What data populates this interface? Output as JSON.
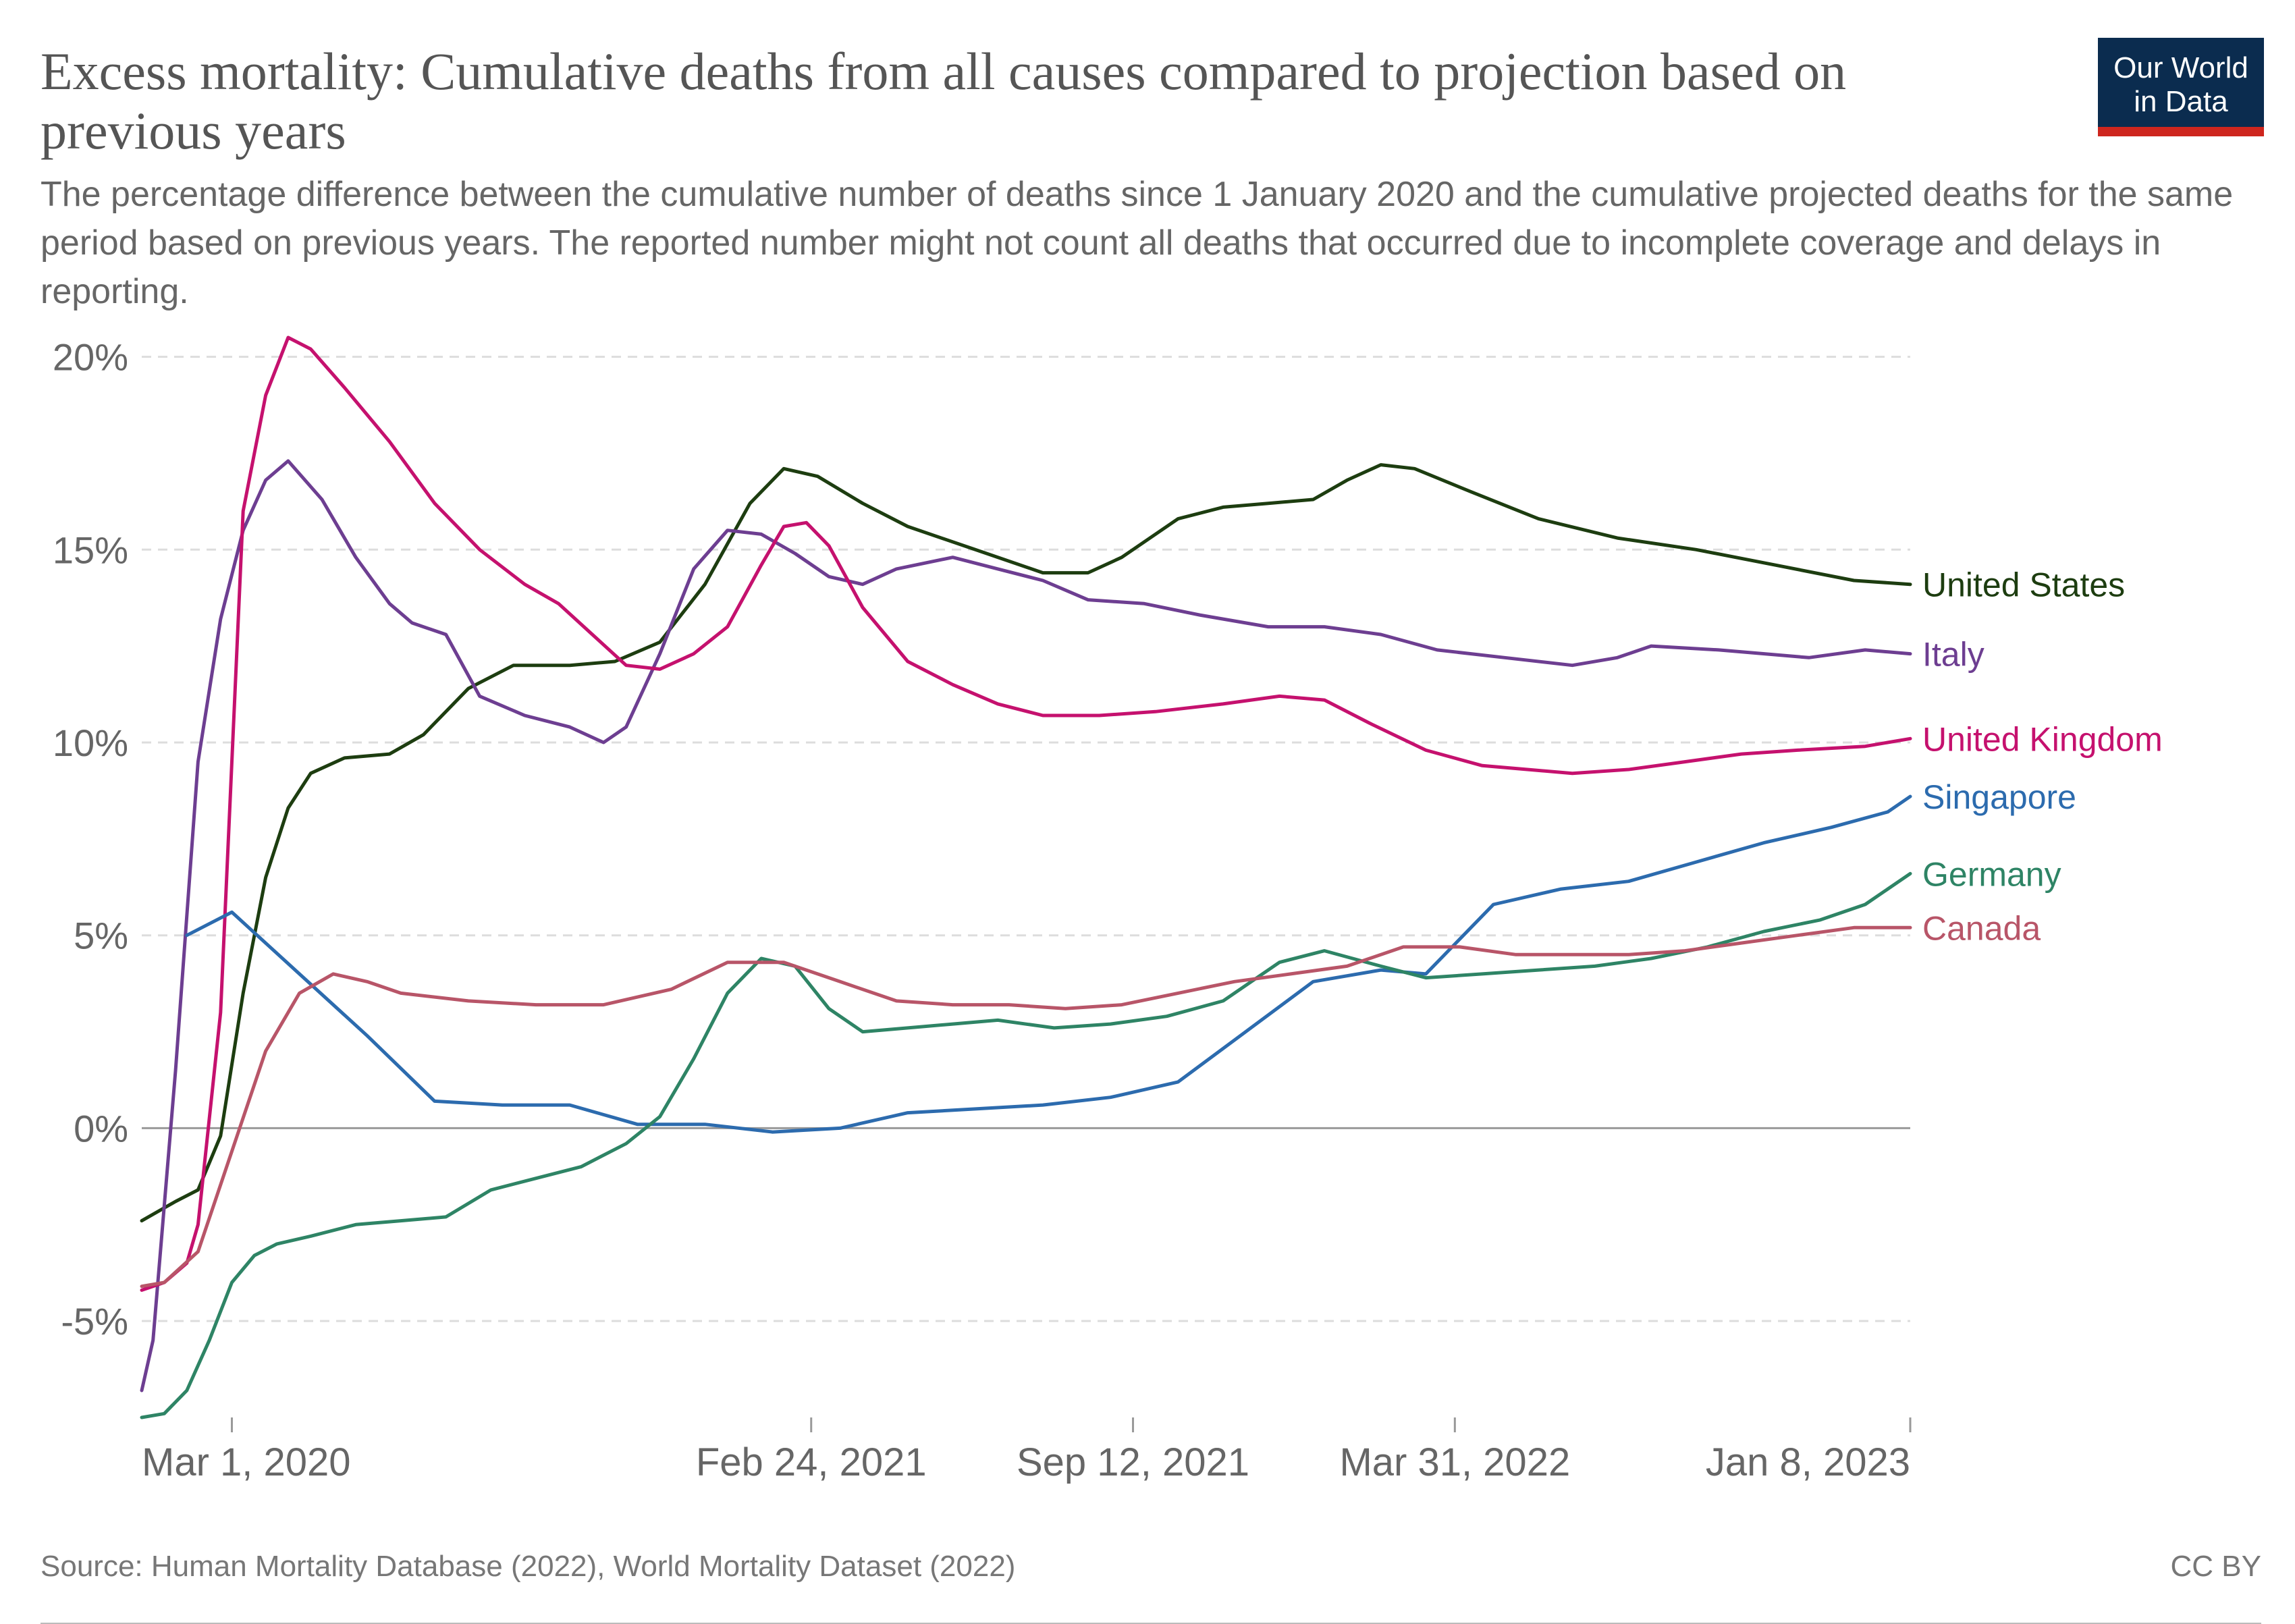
{
  "header": {
    "title": "Excess mortality: Cumulative deaths from all causes compared to projection based on previous years",
    "subtitle": "The percentage difference between the cumulative number of deaths since 1 January 2020 and the cumulative projected deaths for the same period based on previous years. The reported number might not count all deaths that occurred due to incomplete coverage and delays in reporting.",
    "logo_line1": "Our World",
    "logo_line2": "in Data"
  },
  "footer": {
    "source": "Source: Human Mortality Database (2022), World Mortality Dataset (2022)",
    "license": "CC BY"
  },
  "colors": {
    "United States": "#1d3d10",
    "Italy": "#6d3e91",
    "United Kingdom": "#c5116e",
    "Singapore": "#2c6bae",
    "Germany": "#2e8465",
    "Canada": "#b85568",
    "grid": "#dddddd",
    "axis": "#999999",
    "text": "#666666"
  },
  "chart_data": {
    "type": "line",
    "title": "Excess mortality: Cumulative deaths from all causes compared to projection based on previous years",
    "xlabel": "",
    "ylabel": "",
    "x_axis": "date",
    "xlim": [
      "2020-01-05",
      "2023-01-08"
    ],
    "ylim": [
      -7.5,
      20.5
    ],
    "x_ticks": [
      {
        "date": "2020-03-01",
        "label": "Mar 1, 2020"
      },
      {
        "date": "2021-02-24",
        "label": "Feb 24, 2021"
      },
      {
        "date": "2021-09-12",
        "label": "Sep 12, 2021"
      },
      {
        "date": "2022-03-31",
        "label": "Mar 31, 2022"
      },
      {
        "date": "2023-01-08",
        "label": "Jan 8, 2023"
      }
    ],
    "y_ticks": [
      {
        "value": 20,
        "label": "20%"
      },
      {
        "value": 15,
        "label": "15%"
      },
      {
        "value": 10,
        "label": "10%"
      },
      {
        "value": 5,
        "label": "5%"
      },
      {
        "value": 0,
        "label": "0%"
      },
      {
        "value": -5,
        "label": "-5%"
      }
    ],
    "grid": "horizontal dashed",
    "legend": "labels at right end of each line",
    "series": [
      {
        "name": "United States",
        "points": [
          [
            "2020-01-05",
            -2.4
          ],
          [
            "2020-01-26",
            -1.9
          ],
          [
            "2020-02-09",
            -1.6
          ],
          [
            "2020-02-23",
            -0.2
          ],
          [
            "2020-03-08",
            3.5
          ],
          [
            "2020-03-22",
            6.5
          ],
          [
            "2020-04-05",
            8.3
          ],
          [
            "2020-04-19",
            9.2
          ],
          [
            "2020-05-10",
            9.6
          ],
          [
            "2020-06-07",
            9.7
          ],
          [
            "2020-06-28",
            10.2
          ],
          [
            "2020-07-26",
            11.4
          ],
          [
            "2020-08-23",
            12.0
          ],
          [
            "2020-09-27",
            12.0
          ],
          [
            "2020-10-25",
            12.1
          ],
          [
            "2020-11-22",
            12.6
          ],
          [
            "2020-12-20",
            14.1
          ],
          [
            "2021-01-17",
            16.2
          ],
          [
            "2021-02-07",
            17.1
          ],
          [
            "2021-02-28",
            16.9
          ],
          [
            "2021-03-28",
            16.2
          ],
          [
            "2021-04-25",
            15.6
          ],
          [
            "2021-06-06",
            15.0
          ],
          [
            "2021-07-18",
            14.4
          ],
          [
            "2021-08-15",
            14.4
          ],
          [
            "2021-09-05",
            14.8
          ],
          [
            "2021-10-10",
            15.8
          ],
          [
            "2021-11-07",
            16.1
          ],
          [
            "2021-12-05",
            16.2
          ],
          [
            "2022-01-02",
            16.3
          ],
          [
            "2022-01-23",
            16.8
          ],
          [
            "2022-02-13",
            17.2
          ],
          [
            "2022-03-06",
            17.1
          ],
          [
            "2022-04-10",
            16.5
          ],
          [
            "2022-05-22",
            15.8
          ],
          [
            "2022-07-10",
            15.3
          ],
          [
            "2022-08-28",
            15.0
          ],
          [
            "2022-10-16",
            14.6
          ],
          [
            "2022-12-04",
            14.2
          ],
          [
            "2023-01-08",
            14.1
          ]
        ]
      },
      {
        "name": "Italy",
        "points": [
          [
            "2020-01-05",
            -6.8
          ],
          [
            "2020-01-12",
            -5.5
          ],
          [
            "2020-01-26",
            1.5
          ],
          [
            "2020-02-09",
            9.5
          ],
          [
            "2020-02-23",
            13.2
          ],
          [
            "2020-03-08",
            15.5
          ],
          [
            "2020-03-22",
            16.8
          ],
          [
            "2020-04-05",
            17.3
          ],
          [
            "2020-04-26",
            16.3
          ],
          [
            "2020-05-17",
            14.8
          ],
          [
            "2020-06-07",
            13.6
          ],
          [
            "2020-06-21",
            13.1
          ],
          [
            "2020-07-12",
            12.8
          ],
          [
            "2020-08-02",
            11.2
          ],
          [
            "2020-08-30",
            10.7
          ],
          [
            "2020-09-27",
            10.4
          ],
          [
            "2020-10-18",
            10.0
          ],
          [
            "2020-11-01",
            10.4
          ],
          [
            "2020-11-22",
            12.3
          ],
          [
            "2020-12-13",
            14.5
          ],
          [
            "2021-01-03",
            15.5
          ],
          [
            "2021-01-24",
            15.4
          ],
          [
            "2021-02-14",
            14.9
          ],
          [
            "2021-03-07",
            14.3
          ],
          [
            "2021-03-28",
            14.1
          ],
          [
            "2021-04-18",
            14.5
          ],
          [
            "2021-05-23",
            14.8
          ],
          [
            "2021-06-20",
            14.5
          ],
          [
            "2021-07-18",
            14.2
          ],
          [
            "2021-08-15",
            13.7
          ],
          [
            "2021-09-19",
            13.6
          ],
          [
            "2021-10-24",
            13.3
          ],
          [
            "2021-12-05",
            13.0
          ],
          [
            "2022-01-09",
            13.0
          ],
          [
            "2022-02-13",
            12.8
          ],
          [
            "2022-03-20",
            12.4
          ],
          [
            "2022-05-01",
            12.2
          ],
          [
            "2022-06-12",
            12.0
          ],
          [
            "2022-07-10",
            12.2
          ],
          [
            "2022-07-31",
            12.5
          ],
          [
            "2022-09-11",
            12.4
          ],
          [
            "2022-11-06",
            12.2
          ],
          [
            "2022-12-11",
            12.4
          ],
          [
            "2023-01-08",
            12.3
          ]
        ]
      },
      {
        "name": "United Kingdom",
        "points": [
          [
            "2020-01-05",
            -4.2
          ],
          [
            "2020-01-19",
            -4.0
          ],
          [
            "2020-02-02",
            -3.5
          ],
          [
            "2020-02-09",
            -2.5
          ],
          [
            "2020-02-23",
            3.0
          ],
          [
            "2020-03-08",
            16.0
          ],
          [
            "2020-03-22",
            19.0
          ],
          [
            "2020-04-05",
            20.5
          ],
          [
            "2020-04-19",
            20.2
          ],
          [
            "2020-05-10",
            19.2
          ],
          [
            "2020-06-07",
            17.8
          ],
          [
            "2020-07-05",
            16.2
          ],
          [
            "2020-08-02",
            15.0
          ],
          [
            "2020-08-30",
            14.1
          ],
          [
            "2020-09-20",
            13.6
          ],
          [
            "2020-10-11",
            12.8
          ],
          [
            "2020-11-01",
            12.0
          ],
          [
            "2020-11-22",
            11.9
          ],
          [
            "2020-12-13",
            12.3
          ],
          [
            "2021-01-03",
            13.0
          ],
          [
            "2021-01-24",
            14.6
          ],
          [
            "2021-02-07",
            15.6
          ],
          [
            "2021-02-21",
            15.7
          ],
          [
            "2021-03-07",
            15.1
          ],
          [
            "2021-03-28",
            13.5
          ],
          [
            "2021-04-25",
            12.1
          ],
          [
            "2021-05-23",
            11.5
          ],
          [
            "2021-06-20",
            11.0
          ],
          [
            "2021-07-18",
            10.7
          ],
          [
            "2021-08-22",
            10.7
          ],
          [
            "2021-09-26",
            10.8
          ],
          [
            "2021-11-07",
            11.0
          ],
          [
            "2021-12-12",
            11.2
          ],
          [
            "2022-01-09",
            11.1
          ],
          [
            "2022-02-06",
            10.5
          ],
          [
            "2022-03-13",
            9.8
          ],
          [
            "2022-04-17",
            9.4
          ],
          [
            "2022-05-15",
            9.3
          ],
          [
            "2022-06-12",
            9.2
          ],
          [
            "2022-07-17",
            9.3
          ],
          [
            "2022-08-21",
            9.5
          ],
          [
            "2022-09-25",
            9.7
          ],
          [
            "2022-10-30",
            9.8
          ],
          [
            "2022-12-11",
            9.9
          ],
          [
            "2023-01-08",
            10.1
          ]
        ]
      },
      {
        "name": "Singapore",
        "points": [
          [
            "2020-02-02",
            5.0
          ],
          [
            "2020-03-01",
            5.6
          ],
          [
            "2020-04-12",
            4.0
          ],
          [
            "2020-05-24",
            2.4
          ],
          [
            "2020-07-05",
            0.7
          ],
          [
            "2020-08-16",
            0.6
          ],
          [
            "2020-09-27",
            0.6
          ],
          [
            "2020-11-08",
            0.1
          ],
          [
            "2020-12-20",
            0.1
          ],
          [
            "2021-01-31",
            -0.1
          ],
          [
            "2021-03-14",
            0.0
          ],
          [
            "2021-04-25",
            0.4
          ],
          [
            "2021-06-06",
            0.5
          ],
          [
            "2021-07-18",
            0.6
          ],
          [
            "2021-08-29",
            0.8
          ],
          [
            "2021-10-10",
            1.2
          ],
          [
            "2021-11-21",
            2.5
          ],
          [
            "2022-01-02",
            3.8
          ],
          [
            "2022-02-13",
            4.1
          ],
          [
            "2022-03-13",
            4.0
          ],
          [
            "2022-04-24",
            5.8
          ],
          [
            "2022-06-05",
            6.2
          ],
          [
            "2022-07-17",
            6.4
          ],
          [
            "2022-08-28",
            6.9
          ],
          [
            "2022-10-09",
            7.4
          ],
          [
            "2022-11-20",
            7.8
          ],
          [
            "2022-12-25",
            8.2
          ],
          [
            "2023-01-08",
            8.6
          ]
        ]
      },
      {
        "name": "Germany",
        "points": [
          [
            "2020-01-05",
            -7.5
          ],
          [
            "2020-01-19",
            -7.4
          ],
          [
            "2020-02-02",
            -6.8
          ],
          [
            "2020-02-16",
            -5.5
          ],
          [
            "2020-03-01",
            -4.0
          ],
          [
            "2020-03-15",
            -3.3
          ],
          [
            "2020-03-29",
            -3.0
          ],
          [
            "2020-04-19",
            -2.8
          ],
          [
            "2020-05-17",
            -2.5
          ],
          [
            "2020-06-14",
            -2.4
          ],
          [
            "2020-07-12",
            -2.3
          ],
          [
            "2020-08-09",
            -1.6
          ],
          [
            "2020-09-06",
            -1.3
          ],
          [
            "2020-10-04",
            -1.0
          ],
          [
            "2020-11-01",
            -0.4
          ],
          [
            "2020-11-22",
            0.3
          ],
          [
            "2020-12-13",
            1.8
          ],
          [
            "2021-01-03",
            3.5
          ],
          [
            "2021-01-24",
            4.4
          ],
          [
            "2021-02-14",
            4.2
          ],
          [
            "2021-03-07",
            3.1
          ],
          [
            "2021-03-28",
            2.5
          ],
          [
            "2021-04-25",
            2.6
          ],
          [
            "2021-05-23",
            2.7
          ],
          [
            "2021-06-20",
            2.8
          ],
          [
            "2021-07-25",
            2.6
          ],
          [
            "2021-08-29",
            2.7
          ],
          [
            "2021-10-03",
            2.9
          ],
          [
            "2021-11-07",
            3.3
          ],
          [
            "2021-12-12",
            4.3
          ],
          [
            "2022-01-09",
            4.6
          ],
          [
            "2022-02-13",
            4.2
          ],
          [
            "2022-03-13",
            3.9
          ],
          [
            "2022-04-17",
            4.0
          ],
          [
            "2022-05-22",
            4.1
          ],
          [
            "2022-06-26",
            4.2
          ],
          [
            "2022-07-31",
            4.4
          ],
          [
            "2022-09-04",
            4.7
          ],
          [
            "2022-10-09",
            5.1
          ],
          [
            "2022-11-13",
            5.4
          ],
          [
            "2022-12-11",
            5.8
          ],
          [
            "2023-01-08",
            6.6
          ]
        ]
      },
      {
        "name": "Canada",
        "points": [
          [
            "2020-01-05",
            -4.1
          ],
          [
            "2020-01-19",
            -4.0
          ],
          [
            "2020-02-09",
            -3.2
          ],
          [
            "2020-03-01",
            -0.6
          ],
          [
            "2020-03-22",
            2.0
          ],
          [
            "2020-04-12",
            3.5
          ],
          [
            "2020-05-03",
            4.0
          ],
          [
            "2020-05-24",
            3.8
          ],
          [
            "2020-06-14",
            3.5
          ],
          [
            "2020-07-26",
            3.3
          ],
          [
            "2020-09-06",
            3.2
          ],
          [
            "2020-10-18",
            3.2
          ],
          [
            "2020-11-29",
            3.6
          ],
          [
            "2021-01-03",
            4.3
          ],
          [
            "2021-02-07",
            4.3
          ],
          [
            "2021-03-14",
            3.8
          ],
          [
            "2021-04-18",
            3.3
          ],
          [
            "2021-05-23",
            3.2
          ],
          [
            "2021-06-27",
            3.2
          ],
          [
            "2021-08-01",
            3.1
          ],
          [
            "2021-09-05",
            3.2
          ],
          [
            "2021-10-10",
            3.5
          ],
          [
            "2021-11-14",
            3.8
          ],
          [
            "2021-12-19",
            4.0
          ],
          [
            "2022-01-23",
            4.2
          ],
          [
            "2022-02-27",
            4.7
          ],
          [
            "2022-04-03",
            4.7
          ],
          [
            "2022-05-08",
            4.5
          ],
          [
            "2022-06-12",
            4.5
          ],
          [
            "2022-07-17",
            4.5
          ],
          [
            "2022-08-21",
            4.6
          ],
          [
            "2022-09-25",
            4.8
          ],
          [
            "2022-10-30",
            5.0
          ],
          [
            "2022-12-04",
            5.2
          ],
          [
            "2023-01-08",
            5.2
          ]
        ]
      }
    ]
  }
}
